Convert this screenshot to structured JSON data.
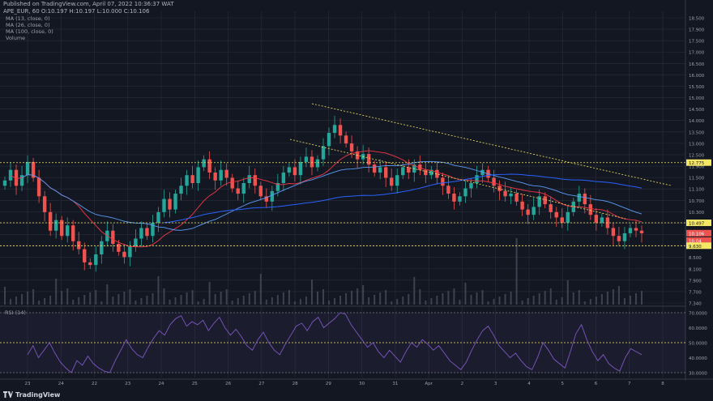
{
  "header": {
    "published": "Published on TradingView.com, April 07, 2022 10:36:37 WAT",
    "symbol": "APE_EUR, 60  O:10.197  H:10.197  L:10.000  C:10.106",
    "indicators": [
      "MA (13, close, 0)",
      "MA (26, close, 0)",
      "MA (100, close, 0)",
      "Volume"
    ]
  },
  "rsi_label": "RSI (14)",
  "footer": {
    "brand": "TradingView"
  },
  "colors": {
    "background": "#131722",
    "grid": "#2a2e39",
    "up": "#26a69a",
    "down": "#ef5350",
    "ma13": "#f23645",
    "ma26": "#5b9cf6",
    "ma100": "#2962ff",
    "level": "#f5e663",
    "channel": "#f5e663",
    "rsi": "#7e57c2",
    "volume": "#3d4150"
  },
  "chart_data": [
    {
      "type": "candlestick",
      "name": "APE_EUR 60",
      "x_ticks": [
        "23",
        "24",
        "22",
        "23",
        "24",
        "25",
        "26",
        "27",
        "28",
        "29",
        "30",
        "31",
        "Apr",
        "2",
        "3",
        "4",
        "5",
        "6",
        "7",
        "8"
      ],
      "y_ticks": [
        "18.500",
        "17.900",
        "17.500",
        "17.000",
        "16.500",
        "16.000",
        "15.500",
        "15.000",
        "14.500",
        "14.000",
        "13.500",
        "13.000",
        "12.500",
        "11.900",
        "11.500",
        "11.100",
        "10.700",
        "10.300",
        "9.900",
        "9.400",
        "9.000",
        "8.500",
        "8.100",
        "7.900",
        "7.700",
        "7.340"
      ],
      "ylim": [
        7.34,
        18.5
      ],
      "price_labels": [
        {
          "text": "12.775",
          "value": 12.775,
          "color": "#f5e663"
        },
        {
          "text": "10.497",
          "value": 10.497,
          "color": "#f5e663"
        },
        {
          "text": "10.106",
          "value": 10.106,
          "color": "#ef5350"
        },
        {
          "text": "10.04",
          "value": 10.04,
          "color": "#ef5350"
        },
        {
          "text": "9.630",
          "value": 9.63,
          "color": "#f5e663"
        }
      ],
      "horizontal_levels": [
        12.775,
        10.497,
        9.63
      ],
      "channel": {
        "upper": [
          {
            "x": 28.5,
            "y": 14.0
          },
          {
            "x": 7.6,
            "y": 10.75
          }
        ],
        "lower": [
          {
            "x": 27.9,
            "y": 12.5
          },
          {
            "x": 7.2,
            "y": 9.6
          }
        ]
      },
      "close": [
        12.1,
        12.5,
        11.9,
        12.3,
        12.8,
        12.2,
        11.5,
        10.9,
        10.2,
        10.6,
        10.0,
        10.4,
        9.8,
        9.5,
        9.0,
        8.9,
        9.3,
        9.8,
        10.2,
        9.7,
        9.4,
        9.2,
        9.6,
        9.9,
        10.3,
        10.0,
        10.5,
        10.9,
        11.4,
        11.0,
        11.6,
        11.9,
        12.3,
        12.0,
        12.6,
        12.9,
        12.4,
        12.1,
        12.5,
        12.2,
        11.8,
        11.6,
        12.0,
        12.3,
        11.9,
        11.5,
        11.3,
        11.7,
        12.0,
        12.4,
        12.6,
        12.3,
        12.8,
        13.0,
        12.6,
        12.9,
        13.4,
        13.9,
        14.2,
        13.8,
        13.5,
        13.2,
        12.9,
        13.1,
        12.7,
        12.4,
        12.6,
        12.2,
        11.9,
        12.3,
        12.6,
        12.4,
        12.7,
        12.5,
        12.3,
        12.5,
        12.2,
        11.9,
        11.6,
        11.3,
        11.5,
        11.8,
        12.0,
        12.3,
        12.5,
        12.2,
        11.9,
        11.7,
        11.5,
        11.6,
        11.3,
        11.0,
        10.8,
        11.1,
        11.5,
        11.2,
        10.9,
        10.7,
        10.5,
        10.9,
        11.3,
        11.6,
        11.2,
        10.8,
        10.5,
        10.7,
        10.3,
        10.0,
        9.8,
        10.1,
        10.3,
        10.2,
        10.1
      ],
      "rsi": {
        "ylim": [
          30,
          70
        ],
        "ticks": [
          "70.0000",
          "60.0000",
          "50.0000",
          "40.0000",
          "30.0000"
        ],
        "levels": [
          70,
          50,
          30
        ],
        "values": [
          42,
          48,
          40,
          45,
          50,
          43,
          37,
          33,
          30,
          38,
          35,
          41,
          36,
          33,
          31,
          30,
          38,
          45,
          52,
          46,
          42,
          40,
          47,
          53,
          58,
          55,
          62,
          66,
          68,
          61,
          64,
          62,
          65,
          58,
          63,
          67,
          60,
          55,
          59,
          54,
          48,
          45,
          52,
          57,
          50,
          45,
          42,
          49,
          55,
          61,
          63,
          58,
          64,
          67,
          60,
          63,
          66,
          70,
          69,
          62,
          57,
          52,
          47,
          50,
          44,
          40,
          45,
          41,
          37,
          44,
          50,
          47,
          52,
          49,
          45,
          48,
          43,
          38,
          35,
          32,
          37,
          45,
          52,
          58,
          61,
          55,
          48,
          44,
          40,
          43,
          38,
          34,
          32,
          40,
          50,
          45,
          39,
          36,
          33,
          44,
          56,
          62,
          52,
          44,
          38,
          42,
          36,
          33,
          31,
          40,
          46,
          44,
          42
        ]
      }
    }
  ]
}
